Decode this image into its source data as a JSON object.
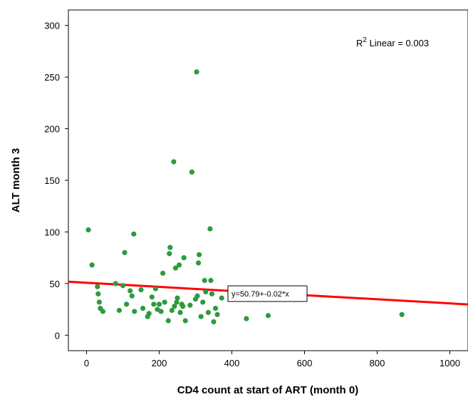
{
  "chart_data": {
    "type": "scatter",
    "title": "",
    "xlabel": "CD4 count at start of ART (month 0)",
    "ylabel": "ALT month 3",
    "xlim": [
      -50,
      1050
    ],
    "ylim": [
      -15,
      315
    ],
    "x_ticks": [
      0,
      200,
      400,
      600,
      800,
      1000
    ],
    "y_ticks": [
      0,
      50,
      100,
      150,
      200,
      250,
      300
    ],
    "x_tick_labels": [
      "0",
      "200",
      "400",
      "600",
      "800",
      "1000"
    ],
    "y_tick_labels": [
      "0",
      "50",
      "100",
      "150",
      "200",
      "250",
      "300"
    ],
    "grid": false,
    "point_color": "#2e9a3e",
    "fit_line_color": "#ff0000",
    "r2_annotation": {
      "prefix": "R",
      "superscript": "2",
      "suffix": " Linear = 0.003"
    },
    "fit_line": {
      "label": "y=50.79+-0.02*x",
      "intercept": 50.79,
      "slope": -0.02,
      "x_range": [
        -50,
        1050
      ]
    },
    "points": [
      {
        "x": 5,
        "y": 102
      },
      {
        "x": 15,
        "y": 68
      },
      {
        "x": 30,
        "y": 47
      },
      {
        "x": 32,
        "y": 40
      },
      {
        "x": 35,
        "y": 32
      },
      {
        "x": 38,
        "y": 26
      },
      {
        "x": 45,
        "y": 23
      },
      {
        "x": 80,
        "y": 50
      },
      {
        "x": 90,
        "y": 24
      },
      {
        "x": 100,
        "y": 48
      },
      {
        "x": 105,
        "y": 80
      },
      {
        "x": 110,
        "y": 30
      },
      {
        "x": 120,
        "y": 43
      },
      {
        "x": 125,
        "y": 38
      },
      {
        "x": 130,
        "y": 98
      },
      {
        "x": 132,
        "y": 23
      },
      {
        "x": 150,
        "y": 44
      },
      {
        "x": 155,
        "y": 26
      },
      {
        "x": 168,
        "y": 18
      },
      {
        "x": 172,
        "y": 21
      },
      {
        "x": 180,
        "y": 37
      },
      {
        "x": 185,
        "y": 30
      },
      {
        "x": 190,
        "y": 45
      },
      {
        "x": 195,
        "y": 25
      },
      {
        "x": 200,
        "y": 30
      },
      {
        "x": 205,
        "y": 23
      },
      {
        "x": 210,
        "y": 60
      },
      {
        "x": 215,
        "y": 32
      },
      {
        "x": 225,
        "y": 14
      },
      {
        "x": 228,
        "y": 79
      },
      {
        "x": 230,
        "y": 85
      },
      {
        "x": 235,
        "y": 24
      },
      {
        "x": 240,
        "y": 168
      },
      {
        "x": 242,
        "y": 28
      },
      {
        "x": 245,
        "y": 65
      },
      {
        "x": 248,
        "y": 32
      },
      {
        "x": 250,
        "y": 36
      },
      {
        "x": 255,
        "y": 68
      },
      {
        "x": 258,
        "y": 22
      },
      {
        "x": 262,
        "y": 30
      },
      {
        "x": 265,
        "y": 28
      },
      {
        "x": 268,
        "y": 75
      },
      {
        "x": 272,
        "y": 14
      },
      {
        "x": 285,
        "y": 29
      },
      {
        "x": 290,
        "y": 158
      },
      {
        "x": 300,
        "y": 35
      },
      {
        "x": 303,
        "y": 255
      },
      {
        "x": 305,
        "y": 38
      },
      {
        "x": 308,
        "y": 70
      },
      {
        "x": 310,
        "y": 78
      },
      {
        "x": 315,
        "y": 18
      },
      {
        "x": 320,
        "y": 32
      },
      {
        "x": 325,
        "y": 53
      },
      {
        "x": 328,
        "y": 42
      },
      {
        "x": 335,
        "y": 22
      },
      {
        "x": 340,
        "y": 103
      },
      {
        "x": 342,
        "y": 53
      },
      {
        "x": 345,
        "y": 40
      },
      {
        "x": 350,
        "y": 13
      },
      {
        "x": 355,
        "y": 26
      },
      {
        "x": 360,
        "y": 20
      },
      {
        "x": 372,
        "y": 36
      },
      {
        "x": 440,
        "y": 16
      },
      {
        "x": 500,
        "y": 19
      },
      {
        "x": 868,
        "y": 20
      }
    ]
  }
}
